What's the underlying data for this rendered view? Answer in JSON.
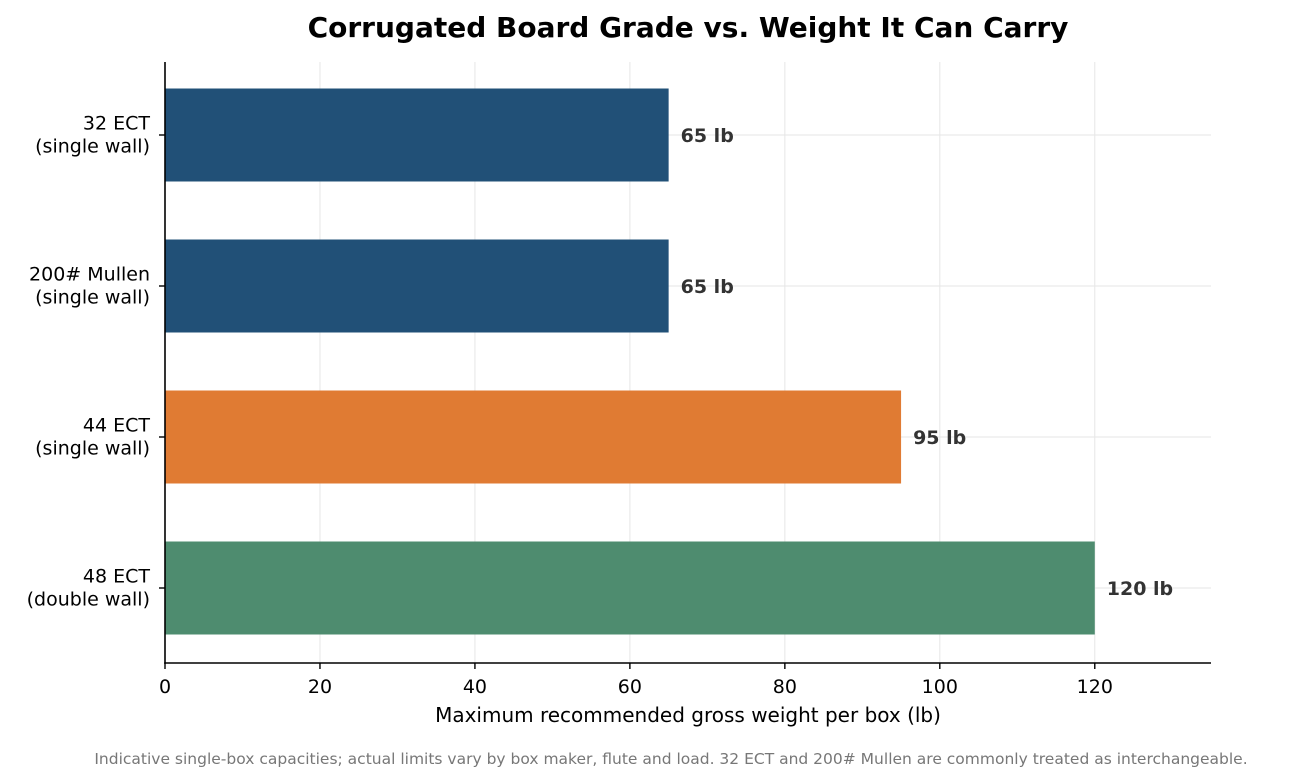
{
  "chart_data": {
    "type": "bar",
    "orientation": "horizontal",
    "title": "Corrugated Board Grade vs. Weight It Can Carry",
    "xlabel": "Maximum recommended gross weight per box (lb)",
    "ylabel": "",
    "xlim": [
      0,
      135
    ],
    "xticks": [
      0,
      20,
      40,
      60,
      80,
      100,
      120
    ],
    "grid": true,
    "categories": [
      [
        "32 ECT",
        "(single wall)"
      ],
      [
        "200# Mullen",
        "(single wall)"
      ],
      [
        "44 ECT",
        "(single wall)"
      ],
      [
        "48 ECT",
        "(double wall)"
      ]
    ],
    "values": [
      65,
      65,
      95,
      120
    ],
    "value_labels": [
      "65 lb",
      "65 lb",
      "95 lb",
      "120 lb"
    ],
    "colors": [
      "#215077",
      "#215077",
      "#e07b33",
      "#4e8c6f"
    ],
    "footnote": "Indicative single-box capacities; actual limits vary by box maker, flute and load. 32 ECT and 200# Mullen are commonly treated as interchangeable."
  }
}
